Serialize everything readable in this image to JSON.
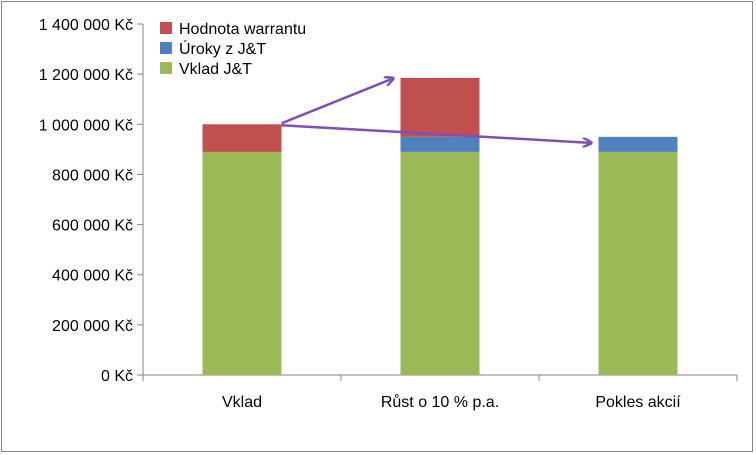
{
  "chart_data": {
    "type": "bar",
    "stacked": true,
    "categories": [
      "Vklad",
      "Růst o 10 % p.a.",
      "Pokles akcií"
    ],
    "series": [
      {
        "name": "Vklad J&T",
        "color": "#9BBB59",
        "values": [
          890000,
          890000,
          890000
        ]
      },
      {
        "name": "Úroky z J&T",
        "color": "#4F81BD",
        "values": [
          0,
          60000,
          60000
        ]
      },
      {
        "name": "Hodnota warrantu",
        "color": "#C0504D",
        "values": [
          110000,
          235000,
          0
        ]
      }
    ],
    "ylim": [
      0,
      1400000
    ],
    "y_ticks": [
      0,
      200000,
      400000,
      600000,
      800000,
      1000000,
      1200000,
      1400000
    ],
    "y_tick_labels": [
      "0 Kč",
      "200 000 Kč",
      "400 000 Kč",
      "600 000 Kč",
      "800 000 Kč",
      "1 000 000 Kč",
      "1 200 000 Kč",
      "1 400 000 Kč"
    ],
    "legend": {
      "placement": "top-left",
      "entries": [
        "Hodnota warrantu",
        "Úroky z J&T",
        "Vklad J&T"
      ]
    },
    "grid": false,
    "annotations": [
      {
        "type": "arrow",
        "from_category": 0,
        "from_value": 1000000,
        "to_category": 1,
        "to_value": 1190000,
        "color": "#7F4FB5"
      },
      {
        "type": "arrow",
        "from_category": 0,
        "from_value": 1000000,
        "to_category": 2,
        "to_value": 950000,
        "color": "#7F4FB5"
      }
    ]
  }
}
